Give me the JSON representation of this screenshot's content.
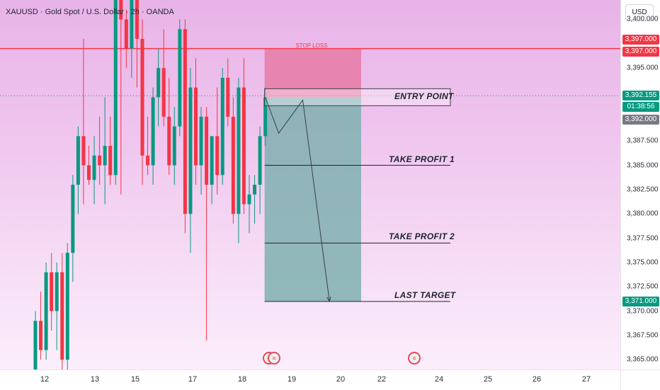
{
  "header": {
    "symbol_title": "XAUUSD · Gold Spot / U.S. Dollar · 2h · OANDA"
  },
  "price_axis": {
    "currency": "USD",
    "min": 3364,
    "max": 3402,
    "ticks": [
      "3,400.000",
      "3,395.000",
      "3,387.500",
      "3,385.000",
      "3,382.500",
      "3,380.000",
      "3,377.500",
      "3,375.000",
      "3,372.500",
      "3,370.000",
      "3,367.500",
      "3,365.000"
    ],
    "tick_values": [
      3400,
      3395,
      3387.5,
      3385,
      3382.5,
      3380,
      3377.5,
      3375,
      3372.5,
      3370,
      3367.5,
      3365
    ],
    "tags": {
      "sl_upper": {
        "label": "3,397.000",
        "value": 3397.9,
        "color": "#f23645"
      },
      "sl_lower": {
        "label": "3,397.000",
        "value": 3396.7,
        "color": "#f23645"
      },
      "current_price": {
        "label": "3,392.155",
        "value": 3392.155,
        "color": "#089981"
      },
      "countdown": {
        "label": "01:38:56",
        "value": 3391.0,
        "color": "#089981"
      },
      "entry": {
        "label": "3,392.000",
        "value": 3389.7,
        "color": "#787b86"
      },
      "last_target": {
        "label": "3,371.000",
        "value": 3371.0,
        "color": "#089981"
      }
    }
  },
  "time_axis": {
    "labels": [
      "12",
      "13",
      "15",
      "17",
      "18",
      "19",
      "20",
      "22",
      "24",
      "25",
      "26",
      "27"
    ]
  },
  "annotations": {
    "stop_loss": {
      "label": "STOP LOSS",
      "price": 3397.0,
      "color": "#f23645"
    },
    "entry_point": {
      "label": "ENTRY POINT",
      "price": 3392.0
    },
    "take_profit_1": {
      "label": "TAKE PROFIT 1",
      "price": 3385.0
    },
    "take_profit_2": {
      "label": "TAKE PROFIT 2",
      "price": 3377.0
    },
    "last_target": {
      "label": "LAST TARGET",
      "price": 3371.0
    }
  },
  "colors": {
    "bull": "#089981",
    "bear": "#f23645",
    "risk_zone": "#e87aa6",
    "reward_zone": "#7fb0b0"
  },
  "events": [
    {
      "icon": "flash-flag-icon",
      "glyph": "⚡"
    },
    {
      "icon": "us-flag-icon",
      "glyph": "≡"
    },
    {
      "icon": "us-flag-icon",
      "glyph": "≡"
    }
  ],
  "chart_data": {
    "type": "candlestick",
    "title": "XAUUSD · Gold Spot / U.S. Dollar · 2h · OANDA",
    "ylim": [
      3364,
      3402
    ],
    "candles": [
      {
        "o": 3364,
        "h": 3370,
        "l": 3364,
        "c": 3369
      },
      {
        "o": 3369,
        "h": 3372,
        "l": 3365,
        "c": 3366
      },
      {
        "o": 3366,
        "h": 3375,
        "l": 3365,
        "c": 3374
      },
      {
        "o": 3374,
        "h": 3376,
        "l": 3368,
        "c": 3370
      },
      {
        "o": 3370,
        "h": 3375,
        "l": 3366,
        "c": 3374
      },
      {
        "o": 3374,
        "h": 3376,
        "l": 3364,
        "c": 3365
      },
      {
        "o": 3365,
        "h": 3377,
        "l": 3364,
        "c": 3376
      },
      {
        "o": 3376,
        "h": 3384,
        "l": 3373,
        "c": 3383
      },
      {
        "o": 3383,
        "h": 3389,
        "l": 3380,
        "c": 3388
      },
      {
        "o": 3388,
        "h": 3398,
        "l": 3381,
        "c": 3385
      },
      {
        "o": 3385,
        "h": 3387,
        "l": 3383,
        "c": 3383.5
      },
      {
        "o": 3383.5,
        "h": 3388,
        "l": 3381,
        "c": 3386
      },
      {
        "o": 3386,
        "h": 3390,
        "l": 3383,
        "c": 3385
      },
      {
        "o": 3385,
        "h": 3392,
        "l": 3381,
        "c": 3387
      },
      {
        "o": 3387,
        "h": 3390,
        "l": 3383,
        "c": 3384
      },
      {
        "o": 3384,
        "h": 3404,
        "l": 3383,
        "c": 3404
      },
      {
        "o": 3404,
        "h": 3405,
        "l": 3382,
        "c": 3400
      },
      {
        "o": 3400,
        "h": 3401,
        "l": 3395,
        "c": 3397
      },
      {
        "o": 3397,
        "h": 3404,
        "l": 3394,
        "c": 3403
      },
      {
        "o": 3403,
        "h": 3404,
        "l": 3393,
        "c": 3398
      },
      {
        "o": 3398,
        "h": 3400,
        "l": 3383,
        "c": 3386
      },
      {
        "o": 3386,
        "h": 3390,
        "l": 3384,
        "c": 3385
      },
      {
        "o": 3385,
        "h": 3393,
        "l": 3383,
        "c": 3392
      },
      {
        "o": 3392,
        "h": 3397,
        "l": 3389,
        "c": 3395
      },
      {
        "o": 3395,
        "h": 3399,
        "l": 3389,
        "c": 3390
      },
      {
        "o": 3390,
        "h": 3394,
        "l": 3384,
        "c": 3385
      },
      {
        "o": 3385,
        "h": 3391,
        "l": 3383,
        "c": 3389
      },
      {
        "o": 3389,
        "h": 3400,
        "l": 3388,
        "c": 3399
      },
      {
        "o": 3399,
        "h": 3400,
        "l": 3378,
        "c": 3380
      },
      {
        "o": 3380,
        "h": 3395,
        "l": 3376,
        "c": 3393
      },
      {
        "o": 3393,
        "h": 3396,
        "l": 3383,
        "c": 3385
      },
      {
        "o": 3385,
        "h": 3391,
        "l": 3382,
        "c": 3390
      },
      {
        "o": 3390,
        "h": 3391,
        "l": 3367,
        "c": 3383
      },
      {
        "o": 3383,
        "h": 3388,
        "l": 3381,
        "c": 3388
      },
      {
        "o": 3388,
        "h": 3393,
        "l": 3382,
        "c": 3384
      },
      {
        "o": 3384,
        "h": 3395,
        "l": 3383,
        "c": 3394
      },
      {
        "o": 3394,
        "h": 3396,
        "l": 3389,
        "c": 3390
      },
      {
        "o": 3390,
        "h": 3392,
        "l": 3379,
        "c": 3380
      },
      {
        "o": 3380,
        "h": 3394,
        "l": 3377,
        "c": 3393
      },
      {
        "o": 3393,
        "h": 3396,
        "l": 3380,
        "c": 3381
      },
      {
        "o": 3381,
        "h": 3384,
        "l": 3378,
        "c": 3382
      },
      {
        "o": 3382,
        "h": 3384,
        "l": 3379,
        "c": 3383
      },
      {
        "o": 3383,
        "h": 3389,
        "l": 3380,
        "c": 3388
      },
      {
        "o": 3388,
        "h": 3393,
        "l": 3387,
        "c": 3392
      }
    ],
    "forecast_path": [
      {
        "bar": 43,
        "price": 3392
      },
      {
        "bar": 45.5,
        "price": 3388.3
      },
      {
        "bar": 50,
        "price": 3391.7
      },
      {
        "bar": 55,
        "price": 3371
      }
    ]
  }
}
